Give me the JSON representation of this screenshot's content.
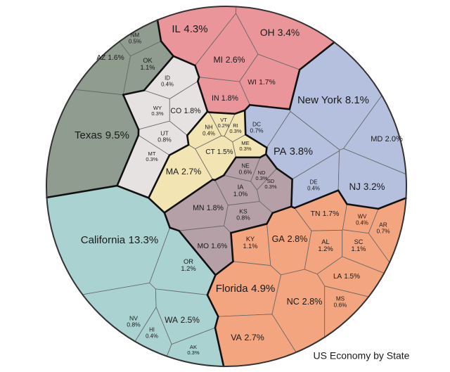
{
  "chart_data": {
    "type": "voronoi",
    "title": "US Economy by State",
    "categories": [
      "IL",
      "OH",
      "NM",
      "AZ",
      "OK",
      "MI",
      "WI",
      "ID",
      "CO",
      "WY",
      "IN",
      "New York",
      "MD",
      "DC",
      "Texas",
      "UT",
      "VT",
      "NH",
      "RI",
      "ME",
      "CT",
      "MT",
      "PA",
      "MA",
      "NE",
      "ND",
      "SD",
      "DE",
      "NJ",
      "IA",
      "MN",
      "TN",
      "WV",
      "AR",
      "KS",
      "California",
      "GA",
      "AL",
      "SC",
      "MO",
      "KY",
      "OR",
      "LA",
      "Florida",
      "NC",
      "MS",
      "NV",
      "WA",
      "HI",
      "VA",
      "AK"
    ],
    "values": [
      4.3,
      3.4,
      0.5,
      1.6,
      1.1,
      2.6,
      1.7,
      0.4,
      1.8,
      0.3,
      1.8,
      8.1,
      2.0,
      0.7,
      9.5,
      0.8,
      0.2,
      0.4,
      0.3,
      0.3,
      1.5,
      0.3,
      3.8,
      2.7,
      0.6,
      0.3,
      0.3,
      0.4,
      3.2,
      1.0,
      1.8,
      1.7,
      0.4,
      0.7,
      0.8,
      13.3,
      2.8,
      1.2,
      1.1,
      1.6,
      1.1,
      1.2,
      1.5,
      4.9,
      2.8,
      0.6,
      0.8,
      2.5,
      0.4,
      2.7,
      0.3
    ],
    "value_labels": [
      "4.3%",
      "3.4%",
      "0.5%",
      "1.6%",
      "1.1%",
      "2.6%",
      "1.7%",
      "0.4%",
      "1.8%",
      "0.3%",
      "1.8%",
      "8.1%",
      "2.0%",
      "0.7%",
      "9.5%",
      "0.8%",
      "0.2%",
      "0.4%",
      "0.3%",
      "0.3%",
      "1.5%",
      "0.3%",
      "3.8%",
      "2.7%",
      "0.6%",
      "0.3%",
      "0.3%",
      "0.4%",
      "3.2%",
      "1.0%",
      "1.8%",
      "1.7%",
      "0.4%",
      "0.7%",
      "0.8%",
      "13.3%",
      "2.8%",
      "1.2%",
      "1.1%",
      "1.6%",
      "1.1%",
      "1.2%",
      "1.5%",
      "4.9%",
      "2.8%",
      "0.6%",
      "0.8%",
      "2.5%",
      "0.4%",
      "2.7%",
      "0.3%"
    ],
    "colors": [
      "#e9959a",
      "#e9959a",
      "#8f9c8f",
      "#8f9c8f",
      "#8f9c8f",
      "#e9959a",
      "#e9959a",
      "#e6e2e2",
      "#e6e2e2",
      "#e6e2e2",
      "#e9959a",
      "#b4c0de",
      "#b4c0de",
      "#b4c0de",
      "#8f9c8f",
      "#e6e2e2",
      "#f3e4b4",
      "#f3e4b4",
      "#f3e4b4",
      "#f3e4b4",
      "#f3e4b4",
      "#e6e2e2",
      "#b4c0de",
      "#f3e4b4",
      "#b4a0a6",
      "#b4a0a6",
      "#b4a0a6",
      "#b4c0de",
      "#b4c0de",
      "#b4a0a6",
      "#b4a0a6",
      "#f2a57e",
      "#f2a57e",
      "#f2a57e",
      "#b4a0a6",
      "#a9d2d0",
      "#f2a57e",
      "#f2a57e",
      "#f2a57e",
      "#b4a0a6",
      "#f2a57e",
      "#a9d2d0",
      "#f2a57e",
      "#f2a57e",
      "#f2a57e",
      "#f2a57e",
      "#a9d2d0",
      "#a9d2d0",
      "#a9d2d0",
      "#f2a57e",
      "#a9d2d0"
    ]
  }
}
